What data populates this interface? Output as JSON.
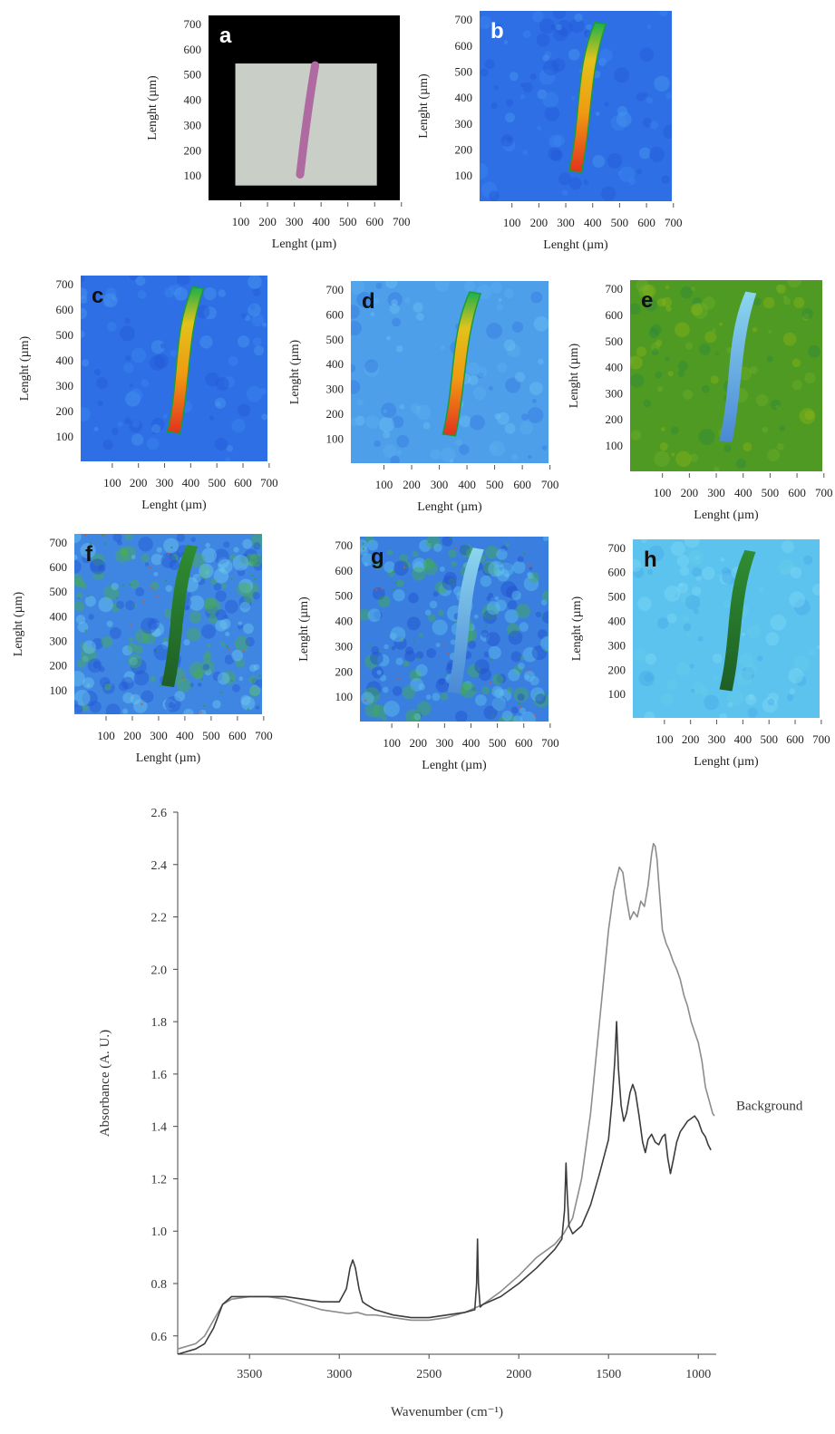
{
  "panels": [
    {
      "label": "a",
      "kind": "micrograph",
      "letter_color": "#ffffff",
      "background": "#000000",
      "xlabel": "Lenght (µm)",
      "ylabel": "Lenght (µm)",
      "xticks": [
        "100",
        "200",
        "300",
        "400",
        "500",
        "600",
        "700"
      ],
      "yticks": [
        "700",
        "600",
        "500",
        "400",
        "300",
        "200",
        "100"
      ]
    },
    {
      "label": "b",
      "kind": "map",
      "palette": "blue",
      "streak": "hot",
      "letter_color": "#ffffff",
      "xlabel": "Lenght (µm)",
      "ylabel": "Lenght (µm)",
      "xticks": [
        "100",
        "200",
        "300",
        "400",
        "500",
        "600",
        "700"
      ],
      "yticks": [
        "700",
        "600",
        "500",
        "400",
        "300",
        "200",
        "100"
      ]
    },
    {
      "label": "c",
      "kind": "map",
      "palette": "blue",
      "streak": "hot",
      "letter_color": "#111111",
      "xlabel": "Lenght (µm)",
      "ylabel": "Lenght (µm)",
      "xticks": [
        "100",
        "200",
        "300",
        "400",
        "500",
        "600",
        "700"
      ],
      "yticks": [
        "700",
        "600",
        "500",
        "400",
        "300",
        "200",
        "100"
      ]
    },
    {
      "label": "d",
      "kind": "map",
      "palette": "lightblue",
      "streak": "hot",
      "letter_color": "#111111",
      "xlabel": "Lenght (µm)",
      "ylabel": "Lenght (µm)",
      "xticks": [
        "100",
        "200",
        "300",
        "400",
        "500",
        "600",
        "700"
      ],
      "yticks": [
        "700",
        "600",
        "500",
        "400",
        "300",
        "200",
        "100"
      ]
    },
    {
      "label": "e",
      "kind": "map",
      "palette": "green",
      "streak": "cool",
      "letter_color": "#111111",
      "xlabel": "Lenght (µm)",
      "ylabel": "Lenght (µm)",
      "xticks": [
        "100",
        "200",
        "300",
        "400",
        "500",
        "600",
        "700"
      ],
      "yticks": [
        "700",
        "600",
        "500",
        "400",
        "300",
        "200",
        "100"
      ]
    },
    {
      "label": "f",
      "kind": "map",
      "palette": "noisy",
      "streak": "dark",
      "letter_color": "#111111",
      "xlabel": "Lenght (µm)",
      "ylabel": "Lenght (µm)",
      "xticks": [
        "100",
        "200",
        "300",
        "400",
        "500",
        "600",
        "700"
      ],
      "yticks": [
        "700",
        "600",
        "500",
        "400",
        "300",
        "200",
        "100"
      ]
    },
    {
      "label": "g",
      "kind": "map",
      "palette": "noisy2",
      "streak": "cool",
      "letter_color": "#111111",
      "xlabel": "Lenght (µm)",
      "ylabel": "Lenght (µm)",
      "xticks": [
        "100",
        "200",
        "300",
        "400",
        "500",
        "600",
        "700"
      ],
      "yticks": [
        "700",
        "600",
        "500",
        "400",
        "300",
        "200",
        "100"
      ]
    },
    {
      "label": "h",
      "kind": "map",
      "palette": "cyan",
      "streak": "dark",
      "letter_color": "#111111",
      "xlabel": "Lenght (µm)",
      "ylabel": "Lenght (µm)",
      "xticks": [
        "100",
        "200",
        "300",
        "400",
        "500",
        "600",
        "700"
      ],
      "yticks": [
        "700",
        "600",
        "500",
        "400",
        "300",
        "200",
        "100"
      ]
    }
  ],
  "chart_data": {
    "type": "line",
    "title": "",
    "xlabel": "Wavenumber (cm⁻¹)",
    "ylabel": "Absorbance (A. U.)",
    "xlim": [
      3900,
      900
    ],
    "ylim": [
      0.53,
      2.6
    ],
    "x_reversed": true,
    "xticks": [
      3500,
      3000,
      2500,
      2000,
      1500,
      1000
    ],
    "yticks": [
      0.6,
      0.8,
      1.0,
      1.2,
      1.4,
      1.6,
      1.8,
      2.0,
      2.2,
      2.4,
      2.6
    ],
    "grid": false,
    "series": [
      {
        "name": "Background",
        "color": "#8c8c8c",
        "points": [
          [
            3900,
            0.55
          ],
          [
            3800,
            0.57
          ],
          [
            3750,
            0.6
          ],
          [
            3700,
            0.66
          ],
          [
            3650,
            0.72
          ],
          [
            3600,
            0.74
          ],
          [
            3500,
            0.75
          ],
          [
            3400,
            0.75
          ],
          [
            3300,
            0.74
          ],
          [
            3200,
            0.72
          ],
          [
            3100,
            0.7
          ],
          [
            3000,
            0.69
          ],
          [
            2950,
            0.685
          ],
          [
            2900,
            0.69
          ],
          [
            2850,
            0.68
          ],
          [
            2800,
            0.68
          ],
          [
            2700,
            0.67
          ],
          [
            2600,
            0.66
          ],
          [
            2500,
            0.66
          ],
          [
            2400,
            0.67
          ],
          [
            2300,
            0.69
          ],
          [
            2200,
            0.72
          ],
          [
            2100,
            0.77
          ],
          [
            2000,
            0.83
          ],
          [
            1900,
            0.9
          ],
          [
            1800,
            0.95
          ],
          [
            1750,
            0.99
          ],
          [
            1700,
            1.05
          ],
          [
            1650,
            1.2
          ],
          [
            1600,
            1.45
          ],
          [
            1550,
            1.8
          ],
          [
            1500,
            2.15
          ],
          [
            1470,
            2.3
          ],
          [
            1450,
            2.36
          ],
          [
            1440,
            2.39
          ],
          [
            1420,
            2.37
          ],
          [
            1400,
            2.27
          ],
          [
            1380,
            2.19
          ],
          [
            1360,
            2.22
          ],
          [
            1340,
            2.2
          ],
          [
            1320,
            2.26
          ],
          [
            1300,
            2.24
          ],
          [
            1280,
            2.32
          ],
          [
            1260,
            2.44
          ],
          [
            1250,
            2.48
          ],
          [
            1240,
            2.47
          ],
          [
            1230,
            2.42
          ],
          [
            1220,
            2.33
          ],
          [
            1200,
            2.15
          ],
          [
            1180,
            2.1
          ],
          [
            1160,
            2.07
          ],
          [
            1140,
            2.03
          ],
          [
            1120,
            2.0
          ],
          [
            1100,
            1.96
          ],
          [
            1080,
            1.9
          ],
          [
            1060,
            1.86
          ],
          [
            1040,
            1.8
          ],
          [
            1020,
            1.76
          ],
          [
            1000,
            1.72
          ],
          [
            980,
            1.65
          ],
          [
            960,
            1.55
          ],
          [
            940,
            1.5
          ],
          [
            920,
            1.45
          ],
          [
            910,
            1.44
          ]
        ]
      },
      {
        "name": "",
        "color": "#3c3c3c",
        "points": [
          [
            3900,
            0.53
          ],
          [
            3800,
            0.55
          ],
          [
            3750,
            0.57
          ],
          [
            3700,
            0.63
          ],
          [
            3650,
            0.72
          ],
          [
            3600,
            0.75
          ],
          [
            3500,
            0.75
          ],
          [
            3400,
            0.75
          ],
          [
            3300,
            0.75
          ],
          [
            3200,
            0.74
          ],
          [
            3100,
            0.73
          ],
          [
            3000,
            0.73
          ],
          [
            2960,
            0.78
          ],
          [
            2940,
            0.86
          ],
          [
            2925,
            0.89
          ],
          [
            2910,
            0.86
          ],
          [
            2890,
            0.78
          ],
          [
            2870,
            0.73
          ],
          [
            2850,
            0.72
          ],
          [
            2800,
            0.7
          ],
          [
            2700,
            0.68
          ],
          [
            2600,
            0.67
          ],
          [
            2500,
            0.67
          ],
          [
            2400,
            0.68
          ],
          [
            2300,
            0.69
          ],
          [
            2245,
            0.7
          ],
          [
            2235,
            0.8
          ],
          [
            2230,
            0.97
          ],
          [
            2225,
            0.8
          ],
          [
            2215,
            0.71
          ],
          [
            2200,
            0.72
          ],
          [
            2100,
            0.75
          ],
          [
            2000,
            0.8
          ],
          [
            1900,
            0.86
          ],
          [
            1800,
            0.93
          ],
          [
            1760,
            0.97
          ],
          [
            1745,
            1.08
          ],
          [
            1737,
            1.26
          ],
          [
            1730,
            1.14
          ],
          [
            1720,
            1.02
          ],
          [
            1700,
            0.99
          ],
          [
            1650,
            1.02
          ],
          [
            1600,
            1.1
          ],
          [
            1550,
            1.22
          ],
          [
            1500,
            1.35
          ],
          [
            1480,
            1.5
          ],
          [
            1465,
            1.65
          ],
          [
            1455,
            1.8
          ],
          [
            1445,
            1.62
          ],
          [
            1430,
            1.48
          ],
          [
            1415,
            1.42
          ],
          [
            1400,
            1.45
          ],
          [
            1380,
            1.53
          ],
          [
            1365,
            1.56
          ],
          [
            1350,
            1.53
          ],
          [
            1330,
            1.44
          ],
          [
            1310,
            1.34
          ],
          [
            1295,
            1.3
          ],
          [
            1280,
            1.35
          ],
          [
            1260,
            1.37
          ],
          [
            1240,
            1.34
          ],
          [
            1220,
            1.33
          ],
          [
            1200,
            1.36
          ],
          [
            1185,
            1.37
          ],
          [
            1170,
            1.28
          ],
          [
            1155,
            1.22
          ],
          [
            1140,
            1.27
          ],
          [
            1120,
            1.34
          ],
          [
            1100,
            1.38
          ],
          [
            1080,
            1.4
          ],
          [
            1060,
            1.42
          ],
          [
            1040,
            1.43
          ],
          [
            1020,
            1.44
          ],
          [
            1000,
            1.42
          ],
          [
            980,
            1.38
          ],
          [
            960,
            1.36
          ],
          [
            945,
            1.33
          ],
          [
            930,
            1.31
          ]
        ]
      }
    ]
  }
}
